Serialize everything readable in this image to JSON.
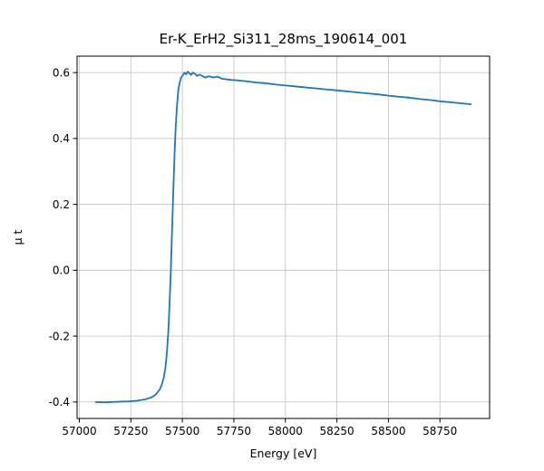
{
  "chart_data": {
    "type": "line",
    "title": "Er-K_ErH2_Si311_28ms_190614_001",
    "xlabel": "Energy [eV]",
    "ylabel": "μ t",
    "xlim": [
      56989,
      58991
    ],
    "ylim": [
      -0.45,
      0.65
    ],
    "xticks": [
      57000,
      57250,
      57500,
      57750,
      58000,
      58250,
      58500,
      58750
    ],
    "yticks": [
      -0.4,
      -0.2,
      0.0,
      0.2,
      0.4,
      0.6
    ],
    "grid": true,
    "legend": "none",
    "line_color": "#1f77b4",
    "grid_color": "#c8c8c8",
    "series": [
      {
        "name": "mu_t",
        "x": [
          57080,
          57120,
          57160,
          57200,
          57240,
          57280,
          57320,
          57350,
          57370,
          57390,
          57400,
          57410,
          57418,
          57425,
          57432,
          57438,
          57444,
          57450,
          57456,
          57462,
          57468,
          57474,
          57480,
          57487,
          57494,
          57502,
          57510,
          57518,
          57526,
          57534,
          57542,
          57550,
          57560,
          57572,
          57584,
          57596,
          57610,
          57630,
          57650,
          57670,
          57690,
          57710,
          57735,
          57760,
          57790,
          57820,
          57860,
          57900,
          57950,
          58000,
          58050,
          58100,
          58150,
          58200,
          58250,
          58300,
          58350,
          58400,
          58450,
          58500,
          58550,
          58600,
          58650,
          58700,
          58750,
          58800,
          58850,
          58900
        ],
        "y": [
          -0.4,
          -0.401,
          -0.4,
          -0.399,
          -0.398,
          -0.396,
          -0.392,
          -0.386,
          -0.378,
          -0.362,
          -0.348,
          -0.325,
          -0.295,
          -0.25,
          -0.185,
          -0.1,
          0.0,
          0.12,
          0.24,
          0.35,
          0.44,
          0.5,
          0.545,
          0.57,
          0.585,
          0.592,
          0.6,
          0.595,
          0.603,
          0.598,
          0.593,
          0.6,
          0.597,
          0.59,
          0.594,
          0.59,
          0.585,
          0.589,
          0.585,
          0.588,
          0.582,
          0.58,
          0.578,
          0.577,
          0.575,
          0.573,
          0.57,
          0.568,
          0.564,
          0.561,
          0.558,
          0.555,
          0.552,
          0.549,
          0.546,
          0.543,
          0.54,
          0.537,
          0.534,
          0.53,
          0.527,
          0.524,
          0.52,
          0.517,
          0.513,
          0.51,
          0.507,
          0.504
        ]
      }
    ]
  }
}
